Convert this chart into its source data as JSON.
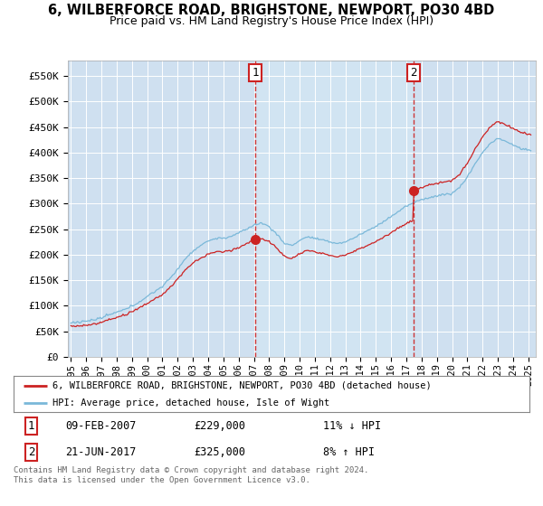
{
  "title": "6, WILBERFORCE ROAD, BRIGHSTONE, NEWPORT, PO30 4BD",
  "subtitle": "Price paid vs. HM Land Registry's House Price Index (HPI)",
  "title_fontsize": 10.5,
  "subtitle_fontsize": 9,
  "background_color": "#cfe0f0",
  "highlight_color": "#ddeeff",
  "figure_bg": "#ffffff",
  "ylabel_ticks": [
    "£0",
    "£50K",
    "£100K",
    "£150K",
    "£200K",
    "£250K",
    "£300K",
    "£350K",
    "£400K",
    "£450K",
    "£500K",
    "£550K"
  ],
  "ytick_values": [
    0,
    50000,
    100000,
    150000,
    200000,
    250000,
    300000,
    350000,
    400000,
    450000,
    500000,
    550000
  ],
  "ylim": [
    0,
    580000
  ],
  "xlim_start": 1994.8,
  "xlim_end": 2025.5,
  "hpi_color": "#7ab8d9",
  "price_color": "#cc2222",
  "sale1_year_f": 2007.1,
  "sale1_price": 229000,
  "sale2_year_f": 2017.47,
  "sale2_price": 325000,
  "legend_line1": "6, WILBERFORCE ROAD, BRIGHSTONE, NEWPORT, PO30 4BD (detached house)",
  "legend_line2": "HPI: Average price, detached house, Isle of Wight",
  "table_row1": [
    "1",
    "09-FEB-2007",
    "£229,000",
    "11% ↓ HPI"
  ],
  "table_row2": [
    "2",
    "21-JUN-2017",
    "£325,000",
    "8% ↑ HPI"
  ],
  "footnote": "Contains HM Land Registry data © Crown copyright and database right 2024.\nThis data is licensed under the Open Government Licence v3.0."
}
